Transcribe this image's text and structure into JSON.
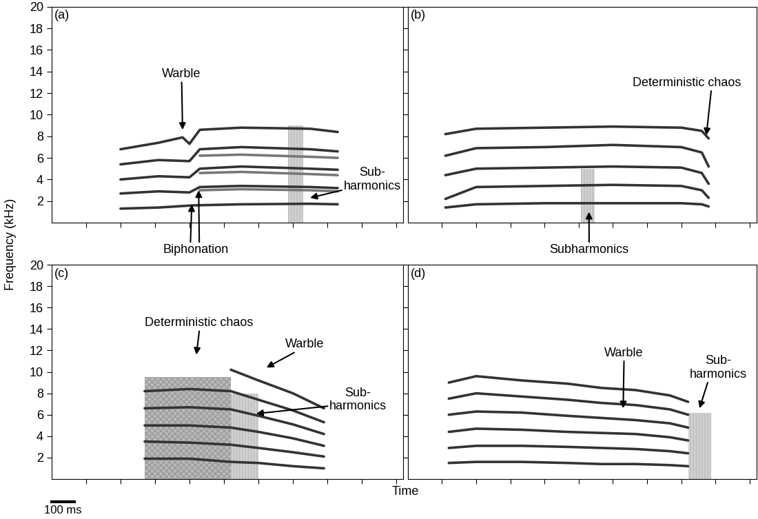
{
  "y_label": "Frequency (kHz)",
  "x_label": "Time",
  "scale_bar": {
    "length": 100,
    "label": "100 ms"
  },
  "chart_data": [
    {
      "type": "line",
      "title": "(a)",
      "color": "#333333",
      "xlim": [
        0,
        1530
      ],
      "xticks": [
        150,
        300,
        450,
        600,
        750,
        900,
        1050,
        1200,
        1350,
        1500
      ],
      "ylim": [
        0,
        20
      ],
      "yticks": [
        2,
        4,
        6,
        8,
        10,
        12,
        14,
        16,
        18,
        20
      ],
      "tick_labels": "y",
      "series": [
        {
          "x": [
            300,
            465,
            615,
            825,
            1125,
            1245
          ],
          "values": [
            1.3,
            1.4,
            1.6,
            1.7,
            1.75,
            1.7
          ]
        },
        {
          "x": [
            300,
            465,
            600,
            645,
            825,
            1125,
            1245
          ],
          "values": [
            2.7,
            2.9,
            2.8,
            3.3,
            3.4,
            3.3,
            3.2
          ]
        },
        {
          "x": [
            300,
            465,
            600,
            645,
            825,
            1125,
            1245
          ],
          "values": [
            4.0,
            4.3,
            4.2,
            5.0,
            5.2,
            5.0,
            4.9
          ]
        },
        {
          "x": [
            300,
            465,
            600,
            645,
            825,
            1125,
            1245
          ],
          "values": [
            5.4,
            5.8,
            5.7,
            6.8,
            7.0,
            6.8,
            6.6
          ]
        },
        {
          "x": [
            300,
            465,
            570,
            600,
            645,
            825,
            1125,
            1245
          ],
          "values": [
            6.8,
            7.4,
            7.9,
            7.3,
            8.6,
            8.8,
            8.7,
            8.4
          ]
        },
        {
          "x": [
            645,
            825,
            1125,
            1245
          ],
          "values": [
            3.0,
            3.1,
            3.0,
            2.9
          ],
          "color": "#777777"
        },
        {
          "x": [
            645,
            825,
            1125,
            1245
          ],
          "values": [
            4.6,
            4.7,
            4.5,
            4.4
          ],
          "color": "#777777"
        },
        {
          "x": [
            645,
            825,
            1125,
            1245
          ],
          "values": [
            6.2,
            6.3,
            6.1,
            6.0
          ],
          "color": "#777777"
        }
      ],
      "subharmonic_regions": [
        {
          "x": [
            1030,
            1095
          ],
          "max_freq": 9
        }
      ],
      "annotations": [
        {
          "text": "Warble",
          "points": [
            [
              570,
              8.6
            ]
          ]
        },
        {
          "text": "Biphonation",
          "points": [
            [
              610,
              1.7
            ],
            [
              640,
              3.0
            ]
          ]
        },
        {
          "text": "Sub-\nharmonics",
          "points": [
            [
              1125,
              2.3
            ]
          ]
        }
      ]
    },
    {
      "type": "line",
      "title": "(b)",
      "color": "#333333",
      "xlim": [
        0,
        1530
      ],
      "xticks": [
        150,
        300,
        450,
        600,
        750,
        900,
        1050,
        1200,
        1350,
        1500
      ],
      "ylim": [
        0,
        20
      ],
      "yticks": [
        2,
        4,
        6,
        8,
        10,
        12,
        14,
        16,
        18,
        20
      ],
      "tick_labels": false,
      "series": [
        {
          "x": [
            165,
            300,
            600,
            900,
            1200,
            1290,
            1320
          ],
          "values": [
            1.4,
            1.7,
            1.8,
            1.8,
            1.8,
            1.7,
            1.5
          ]
        },
        {
          "x": [
            165,
            300,
            600,
            900,
            1200,
            1290,
            1320
          ],
          "values": [
            2.2,
            3.3,
            3.4,
            3.5,
            3.4,
            3.0,
            2.3
          ]
        },
        {
          "x": [
            165,
            300,
            600,
            900,
            1200,
            1290,
            1320
          ],
          "values": [
            4.4,
            5.0,
            5.1,
            5.2,
            5.1,
            4.6,
            3.6
          ]
        },
        {
          "x": [
            165,
            300,
            600,
            900,
            1200,
            1290,
            1320
          ],
          "values": [
            6.2,
            6.9,
            7.0,
            7.2,
            7.0,
            6.5,
            5.2
          ]
        },
        {
          "x": [
            165,
            300,
            600,
            900,
            1200,
            1290,
            1320
          ],
          "values": [
            8.2,
            8.7,
            8.8,
            8.9,
            8.8,
            8.5,
            7.8
          ]
        }
      ],
      "subharmonic_regions": [
        {
          "x": [
            760,
            820
          ],
          "max_freq": 5
        }
      ],
      "annotations": [
        {
          "text": "Deterministic chaos",
          "points": [
            [
              1310,
              8.1
            ]
          ]
        },
        {
          "text": "Subharmonics",
          "points": [
            [
              795,
              1.0
            ]
          ]
        }
      ]
    },
    {
      "type": "line",
      "title": "(c)",
      "color": "#333333",
      "xlim": [
        0,
        1530
      ],
      "xticks": [
        150,
        300,
        450,
        600,
        750,
        900,
        1050,
        1200,
        1350,
        1500
      ],
      "ylim": [
        0,
        20
      ],
      "yticks": [
        2,
        4,
        6,
        8,
        10,
        12,
        14,
        16,
        18,
        20
      ],
      "tick_labels": "y",
      "series": [
        {
          "x": [
            405,
            600,
            780,
            900,
            1050,
            1185
          ],
          "values": [
            1.9,
            1.9,
            1.6,
            1.5,
            1.2,
            1.0
          ]
        },
        {
          "x": [
            405,
            600,
            780,
            900,
            1050,
            1185
          ],
          "values": [
            3.5,
            3.4,
            3.2,
            2.9,
            2.5,
            2.1
          ]
        },
        {
          "x": [
            405,
            600,
            780,
            900,
            1050,
            1185
          ],
          "values": [
            5.0,
            5.0,
            4.8,
            4.4,
            3.8,
            3.1
          ]
        },
        {
          "x": [
            405,
            600,
            780,
            900,
            1050,
            1185
          ],
          "values": [
            6.6,
            6.7,
            6.5,
            5.9,
            5.1,
            4.2
          ]
        },
        {
          "x": [
            405,
            600,
            780,
            900,
            1050,
            1185
          ],
          "values": [
            8.2,
            8.4,
            8.2,
            7.4,
            6.4,
            5.3
          ]
        },
        {
          "x": [
            780,
            900,
            1050,
            1185
          ],
          "values": [
            10.2,
            9.2,
            8.0,
            6.6
          ]
        }
      ],
      "chaos_regions": [
        {
          "x": [
            405,
            780
          ],
          "max_freq": 9.5
        }
      ],
      "subharmonic_regions": [
        {
          "x": [
            780,
            900
          ],
          "max_freq": 8
        }
      ],
      "annotations": [
        {
          "text": "Deterministic chaos",
          "points": [
            [
              630,
              11.6
            ]
          ]
        },
        {
          "text": "Warble",
          "points": [
            [
              935,
              10.4
            ]
          ]
        },
        {
          "text": "Sub-\nharmonics",
          "points": [
            [
              890,
              6.1
            ]
          ]
        }
      ]
    },
    {
      "type": "line",
      "title": "(d)",
      "color": "#333333",
      "xlim": [
        0,
        1530
      ],
      "xticks": [
        150,
        300,
        450,
        600,
        750,
        900,
        1050,
        1200,
        1350,
        1500
      ],
      "ylim": [
        0,
        20
      ],
      "yticks": [
        2,
        4,
        6,
        8,
        10,
        12,
        14,
        16,
        18,
        20
      ],
      "tick_labels": false,
      "series": [
        {
          "x": [
            180,
            300,
            500,
            700,
            850,
            1000,
            1150,
            1230
          ],
          "values": [
            1.5,
            1.6,
            1.6,
            1.5,
            1.4,
            1.4,
            1.3,
            1.2
          ]
        },
        {
          "x": [
            180,
            300,
            500,
            700,
            850,
            1000,
            1150,
            1230
          ],
          "values": [
            2.9,
            3.1,
            3.1,
            3.0,
            2.9,
            2.8,
            2.6,
            2.4
          ]
        },
        {
          "x": [
            180,
            300,
            500,
            700,
            850,
            1000,
            1150,
            1230
          ],
          "values": [
            4.4,
            4.7,
            4.6,
            4.4,
            4.3,
            4.2,
            3.9,
            3.6
          ]
        },
        {
          "x": [
            180,
            300,
            500,
            700,
            850,
            1000,
            1150,
            1230
          ],
          "values": [
            6.0,
            6.3,
            6.2,
            5.9,
            5.7,
            5.5,
            5.2,
            4.8
          ]
        },
        {
          "x": [
            180,
            300,
            500,
            700,
            850,
            1000,
            1150,
            1230
          ],
          "values": [
            7.5,
            8.0,
            7.7,
            7.4,
            7.1,
            6.9,
            6.5,
            6.0
          ]
        },
        {
          "x": [
            180,
            300,
            500,
            700,
            850,
            1000,
            1150,
            1230
          ],
          "values": [
            9.0,
            9.6,
            9.2,
            8.9,
            8.5,
            8.3,
            7.8,
            7.2
          ]
        }
      ],
      "subharmonic_regions": [
        {
          "x": [
            1230,
            1330
          ],
          "max_freq": 6.2
        }
      ],
      "annotations": [
        {
          "text": "Warble",
          "points": [
            [
              945,
              6.6
            ]
          ]
        },
        {
          "text": "Sub-\nharmonics",
          "points": [
            [
              1280,
              6.6
            ]
          ]
        }
      ]
    }
  ]
}
